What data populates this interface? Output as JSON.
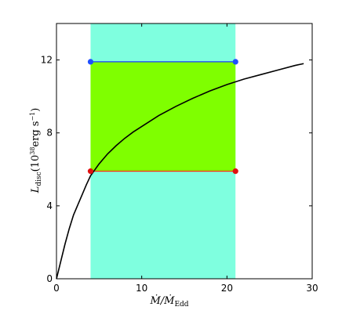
{
  "chart_data": {
    "type": "line",
    "title": "",
    "xlabel": "Ṁ/Ṁ_Edd",
    "ylabel": "L_disc (10^38 erg s^-1)",
    "xlabel_parts": {
      "m1": "Ṁ",
      "slash": "/",
      "m2": "Ṁ",
      "sub": "Edd"
    },
    "ylabel_parts": {
      "L": "L",
      "sub": "disc",
      "open": "(10",
      "exp": "38",
      "unit": "erg s",
      "unit_exp": "−1",
      "close": ")"
    },
    "xlim": [
      0,
      30
    ],
    "ylim": [
      0,
      14
    ],
    "x_ticks": [
      0,
      10,
      20,
      30
    ],
    "y_ticks": [
      0,
      4,
      8,
      12
    ],
    "grid": false,
    "legend": "none",
    "shaded_region": {
      "x_range": [
        4,
        21
      ],
      "y_range": [
        0,
        14
      ],
      "color": "#7fffdf"
    },
    "green_box": {
      "x_range": [
        4,
        21
      ],
      "y_range": [
        5.9,
        11.9
      ],
      "color": "#7fff00"
    },
    "upper_line": {
      "x": [
        4,
        21
      ],
      "y": [
        11.9,
        11.9
      ],
      "line_color": "#1a3cff",
      "marker_color": "#1f4fff"
    },
    "lower_line": {
      "x": [
        4,
        21
      ],
      "y": [
        5.9,
        5.9
      ],
      "line_color": "#ff2a00",
      "marker_color": "#e01010"
    },
    "series": [
      {
        "color": "#000000",
        "x": [
          0,
          0.5,
          1,
          1.5,
          2,
          2.5,
          3,
          3.5,
          4,
          5,
          6,
          7,
          8,
          9,
          10,
          12,
          14,
          16,
          18,
          20,
          22,
          24,
          26,
          28,
          29
        ],
        "y": [
          0,
          0.95,
          1.9,
          2.75,
          3.5,
          4.05,
          4.6,
          5.15,
          5.65,
          6.3,
          6.85,
          7.3,
          7.7,
          8.05,
          8.35,
          8.95,
          9.45,
          9.9,
          10.3,
          10.65,
          10.95,
          11.2,
          11.45,
          11.7,
          11.8
        ]
      }
    ]
  }
}
